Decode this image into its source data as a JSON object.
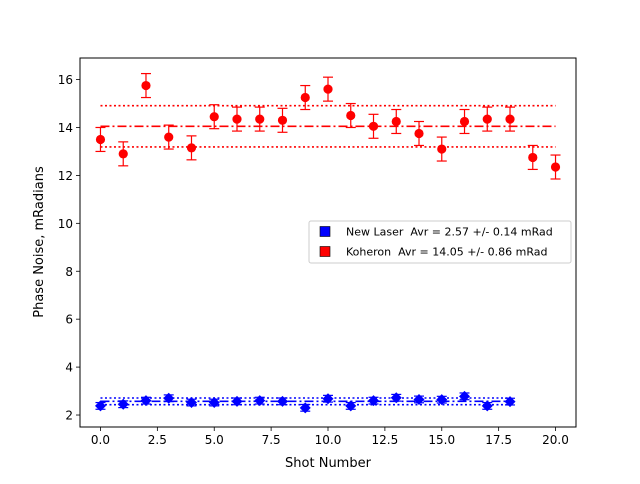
{
  "chart_data": {
    "type": "scatter",
    "title": "",
    "xlabel": "Shot Number",
    "ylabel": "Phase Noise, mRadians",
    "xlim": [
      -0.9,
      20.9
    ],
    "ylim": [
      1.5,
      16.9
    ],
    "xticks": [
      0.0,
      2.5,
      5.0,
      7.5,
      10.0,
      12.5,
      15.0,
      17.5,
      20.0
    ],
    "xtick_labels": [
      "0.0",
      "2.5",
      "5.0",
      "7.5",
      "10.0",
      "12.5",
      "15.0",
      "17.5",
      "20.0"
    ],
    "yticks": [
      2,
      4,
      6,
      8,
      10,
      12,
      14,
      16
    ],
    "ytick_labels": [
      "2",
      "4",
      "6",
      "8",
      "10",
      "12",
      "14",
      "16"
    ],
    "grid": false,
    "legend_position": "center-right",
    "series": [
      {
        "name": "New Laser  Avr = 2.57 +/- 0.14 mRad",
        "color": "#0000ff",
        "marker": "diamond",
        "x": [
          0,
          1,
          2,
          3,
          4,
          5,
          6,
          7,
          8,
          9,
          10,
          11,
          12,
          13,
          14,
          15,
          16,
          17,
          18
        ],
        "y": [
          2.38,
          2.45,
          2.6,
          2.7,
          2.52,
          2.52,
          2.57,
          2.6,
          2.57,
          2.3,
          2.68,
          2.38,
          2.6,
          2.72,
          2.65,
          2.64,
          2.78,
          2.38,
          2.56
        ],
        "err": [
          0.14,
          0.14,
          0.14,
          0.14,
          0.14,
          0.14,
          0.14,
          0.14,
          0.14,
          0.14,
          0.14,
          0.14,
          0.14,
          0.14,
          0.14,
          0.14,
          0.14,
          0.14,
          0.14
        ],
        "mean": 2.57,
        "std": 0.14,
        "line_xrange": [
          0,
          18
        ]
      },
      {
        "name": "Koheron  Avr = 14.05 +/- 0.86 mRad",
        "color": "#ff0000",
        "marker": "circle",
        "x": [
          0,
          1,
          2,
          3,
          4,
          5,
          6,
          7,
          8,
          9,
          10,
          11,
          12,
          13,
          14,
          15,
          16,
          17,
          18,
          19,
          20
        ],
        "y": [
          13.5,
          12.9,
          15.75,
          13.6,
          13.15,
          14.45,
          14.35,
          14.35,
          14.3,
          15.25,
          15.6,
          14.5,
          14.05,
          14.25,
          13.75,
          13.1,
          14.25,
          14.35,
          14.35,
          12.75,
          12.35
        ],
        "err": [
          0.5,
          0.5,
          0.5,
          0.5,
          0.5,
          0.5,
          0.5,
          0.5,
          0.5,
          0.5,
          0.5,
          0.5,
          0.5,
          0.5,
          0.5,
          0.5,
          0.5,
          0.5,
          0.5,
          0.5,
          0.5
        ],
        "mean": 14.05,
        "std": 0.86,
        "line_xrange": [
          0,
          20
        ]
      }
    ]
  }
}
